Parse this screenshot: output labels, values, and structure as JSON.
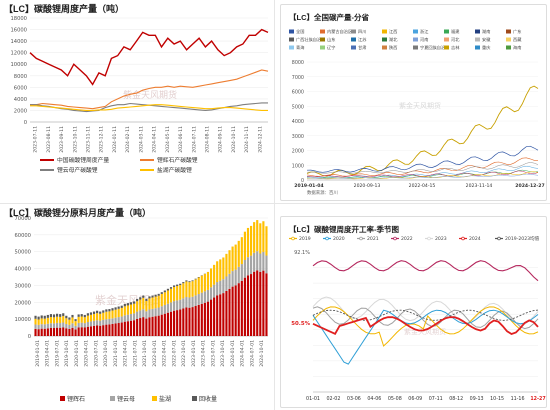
{
  "panels": {
    "p1": {
      "title": "【LC】碳酸锂周度产量（吨）",
      "watermark": "紫金天风期货",
      "chart_data": {
        "type": "line",
        "title": "【LC】碳酸锂周度产量（吨）",
        "ylim": [
          0,
          18000
        ],
        "yticks": [
          "0",
          "2000",
          "4000",
          "6000",
          "8000",
          "10000",
          "12000",
          "14000",
          "16000",
          "18000"
        ],
        "xticks": [
          "2023-07-11",
          "2023-08-11",
          "2023-09-11",
          "2023-10-11",
          "2023-11-11",
          "2023-12-11",
          "2024-01-11",
          "2024-02-11",
          "2024-03-11",
          "2024-04-11",
          "2024-05-11",
          "2024-06-11",
          "2024-07-11",
          "2024-08-11",
          "2024-09-11",
          "2024-10-11",
          "2024-11-11",
          "2024-12-11"
        ],
        "series": [
          {
            "name": "中国碳酸锂周度产量",
            "color": "#c00000",
            "values": [
              12000,
              11000,
              10500,
              10000,
              9500,
              9000,
              8000,
              10000,
              9000,
              8000,
              6500,
              8500,
              8000,
              11000,
              11500,
              13000,
              12500,
              14000,
              15500,
              15000,
              15000,
              13000,
              14500,
              13500,
              14000,
              12500,
              13500,
              14500,
              13000,
              14000,
              12500,
              11500,
              12000,
              13000,
              13500,
              15000,
              15000,
              16000,
              15500
            ]
          },
          {
            "name": "锂辉石产碳酸锂",
            "color": "#ed7d31",
            "values": [
              3000,
              3000,
              3200,
              3100,
              3000,
              2900,
              2700,
              2600,
              2500,
              2400,
              2300,
              2500,
              2700,
              3500,
              4000,
              4500,
              4800,
              5000,
              5500,
              5800,
              6000,
              6000,
              6200,
              6000,
              6200,
              6100,
              6000,
              6200,
              6400,
              6600,
              6800,
              7000,
              7200,
              7400,
              7800,
              8200,
              8600,
              9000,
              8800
            ]
          },
          {
            "name": "锂云母产碳酸锂",
            "color": "#7f7f7f",
            "values": [
              3000,
              3000,
              2800,
              2700,
              2500,
              2300,
              2200,
              2000,
              1900,
              1800,
              1900,
              2000,
              2500,
              2800,
              3000,
              3000,
              3200,
              3100,
              3000,
              2900,
              2800,
              2700,
              2600,
              2500,
              2400,
              2300,
              2200,
              2100,
              2000,
              2100,
              2300,
              2500,
              2700,
              2800,
              3000,
              3100,
              3200,
              3300,
              3300
            ]
          },
          {
            "name": "盐湖产碳酸锂",
            "color": "#ffc000",
            "values": [
              2800,
              2800,
              2700,
              2600,
              2500,
              2400,
              2300,
              2200,
              2100,
              2000,
              2000,
              2100,
              2100,
              2200,
              2400,
              2500,
              2600,
              2700,
              2800,
              2900,
              3000,
              3000,
              2900,
              2800,
              2700,
              2600,
              2500,
              2400,
              2300,
              2300,
              2400,
              2500,
              2500,
              2400,
              2300,
              2200,
              2100,
              2000,
              2000
            ]
          }
        ],
        "legend": [
          "中国碳酸锂周度产量",
          "锂辉石产碳酸锂",
          "锂云母产碳酸锂",
          "盐湖产碳酸锂"
        ]
      }
    },
    "p2": {
      "title": "【LC】全国碳产量-分省",
      "watermark": "紫金天风期货",
      "source": "数据来源：百川",
      "chart_data": {
        "type": "line",
        "title": "【LC】全国碳产量-分省",
        "ylim": [
          0,
          8000
        ],
        "yticks": [
          "0",
          "1000",
          "2000",
          "3000",
          "4000",
          "5000",
          "6000",
          "7000",
          "8000"
        ],
        "xticks": [
          "2019-01-04",
          "2020-09-13",
          "2022-04-15",
          "2023-11-14",
          "2024-12-27"
        ],
        "legend": [
          "全国",
          "内蒙古自治区",
          "四川",
          "江西",
          "浙江",
          "福建",
          "湖南",
          "广东",
          "广西壮族自治区",
          "山东",
          "江苏",
          "湖北",
          "河南",
          "河北",
          "安徽",
          "西藏",
          "青海",
          "辽宁",
          "甘肃",
          "陕西",
          "宁夏回族自治区",
          "吉林",
          "重庆",
          "海南"
        ],
        "series_colors": [
          "#2f55a4",
          "#e06c2e",
          "#8c8c8c",
          "#f2b600",
          "#4aa3df",
          "#3aa856",
          "#223f80",
          "#9e4a1b",
          "#5a5a5a",
          "#9a7a00",
          "#1f6fa8",
          "#2b7a3b",
          "#7fa0d8",
          "#f0a070",
          "#b8b8b8",
          "#f5d060",
          "#8ec8ee",
          "#96d07e",
          "#4a6fb5",
          "#d08040",
          "#7a7a7a",
          "#c8a000",
          "#2e8bc8",
          "#4e9a3e"
        ]
      }
    },
    "p3": {
      "title": "【LC】碳酸锂分原料月度产量（吨）",
      "watermark": "紫金天风期货",
      "chart_data": {
        "type": "bar",
        "title": "【LC】碳酸锂分原料月度产量（吨）",
        "ylim": [
          0,
          70000
        ],
        "yticks": [
          "0",
          "10000",
          "20000",
          "30000",
          "40000",
          "50000",
          "60000",
          "70000"
        ],
        "xticks": [
          "2019-01-01",
          "2019-04-01",
          "2019-07-01",
          "2019-10-01",
          "2020-01-01",
          "2020-04-01",
          "2020-07-01",
          "2020-10-01",
          "2021-01-01",
          "2021-04-01",
          "2021-07-01",
          "2021-10-01",
          "2022-01-01",
          "2022-04-01",
          "2022-07-01",
          "2022-10-01",
          "2023-01-01",
          "2023-04-01",
          "2023-07-01",
          "2023-10-01",
          "2024-01-01",
          "2024-04-01",
          "2024-07-01",
          "2024-10-01"
        ],
        "stack_names": [
          "锂辉石",
          "锂云母",
          "盐湖",
          "回收量"
        ],
        "stack_colors": [
          "#c00000",
          "#a5a5a5",
          "#ffc000",
          "#595959"
        ],
        "totals": [
          12000,
          11500,
          12200,
          12000,
          12500,
          13000,
          12800,
          13200,
          13000,
          13500,
          12000,
          11000,
          12500,
          10000,
          12800,
          13000,
          12500,
          13500,
          14000,
          14500,
          15000,
          14500,
          15200,
          15800,
          16000,
          16500,
          17000,
          17500,
          18000,
          19000,
          19500,
          20000,
          20500,
          22000,
          23000,
          24000,
          22000,
          23500,
          24000,
          24500,
          25000,
          26000,
          27000,
          28000,
          29000,
          30000,
          30500,
          31000,
          32000,
          33000,
          32500,
          33000,
          34000,
          35000,
          36000,
          37000,
          38000,
          40000,
          42000,
          44000,
          45000,
          46000,
          48000,
          50000,
          52000,
          53000,
          55000,
          57000,
          60000,
          62000,
          63000,
          65000,
          66000,
          64000,
          65000,
          62000
        ]
      }
    },
    "p4": {
      "title": "【LC】碳酸锂周度开工率-季节图",
      "watermark": "紫金天风期货",
      "chart_data": {
        "type": "line",
        "title": "【LC】碳酸锂周度开工率-季节图",
        "yticks": [
          "92.1%",
          "",
          "",
          "",
          "",
          "",
          "",
          "50.5%",
          ""
        ],
        "xticks": [
          "01-01",
          "02-02",
          "03-06",
          "04-06",
          "05-08",
          "06-09",
          "07-11",
          "08-12",
          "09-13",
          "10-15",
          "11-16",
          "12-27"
        ],
        "legend": [
          "2019",
          "2020",
          "2021",
          "2022",
          "2023",
          "2024",
          "2019-2023均值"
        ],
        "highlight_label": "50.5%",
        "highlight_tick": "12-27",
        "series_colors": [
          "#f2b600",
          "#2f9fd6",
          "#a0a0a0",
          "#b5285e",
          "#d8d8d8",
          "#e02020",
          "#555555"
        ]
      }
    }
  }
}
